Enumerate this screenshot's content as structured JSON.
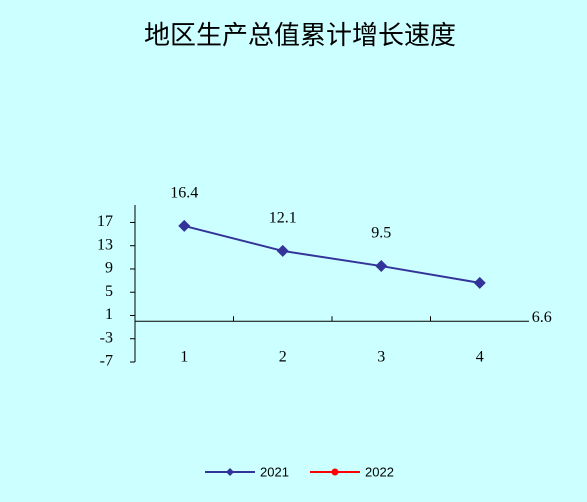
{
  "chart_data": {
    "type": "line",
    "title": "地区生产总值累计增长速度",
    "categories": [
      "1",
      "2",
      "3",
      "4"
    ],
    "series": [
      {
        "name": "2021",
        "color": "#333399",
        "values": [
          16.4,
          12.1,
          9.5,
          6.6
        ]
      },
      {
        "name": "2022",
        "color": "#ff0000",
        "values": [
          null,
          null,
          null,
          null
        ]
      }
    ],
    "ylim": [
      -7,
      20
    ],
    "yticks": [
      17,
      13,
      9,
      5,
      1,
      -3,
      -7
    ],
    "grid": false,
    "legend": "bottom"
  }
}
